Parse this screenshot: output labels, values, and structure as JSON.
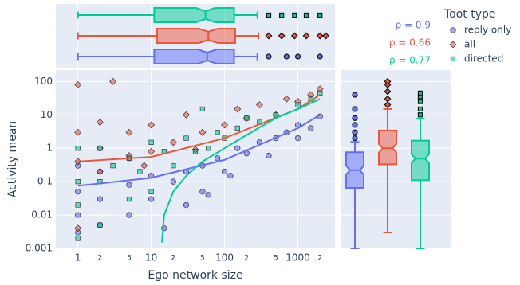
{
  "chart_data": [
    {
      "type": "scatter",
      "x_label": "Ego network size",
      "y_label": "Activity mean",
      "x_log": true,
      "y_log": true,
      "grid": true,
      "legend_title": "Toot type",
      "legend_position": "top-right",
      "xlim": [
        0.5,
        3200
      ],
      "ylim": [
        0.001,
        220
      ],
      "xticks": [
        1,
        2,
        5,
        10,
        {
          "value": 20,
          "label": "2"
        },
        {
          "value": 50,
          "label": "5"
        },
        100,
        {
          "value": 200,
          "label": "2"
        },
        {
          "value": 500,
          "label": "5"
        },
        1000,
        {
          "value": 2000,
          "label": "2"
        }
      ],
      "yticks": [
        0.001,
        0.01,
        0.1,
        1,
        10,
        100
      ],
      "annotations": [
        {
          "text": "ρ = 0.9",
          "color": "#636efa"
        },
        {
          "text": "ρ = 0.66",
          "color": "#ef553b"
        },
        {
          "text": "ρ = 0.77",
          "color": "#00cc96"
        }
      ],
      "series": [
        {
          "name": "reply only",
          "color": "#636efa",
          "symbol": "circle",
          "x": [
            1,
            1,
            1,
            1,
            2,
            2,
            2,
            5,
            5,
            5,
            10,
            10,
            15,
            20,
            30,
            50,
            50,
            80,
            100,
            150,
            200,
            300,
            400,
            500,
            700,
            1000,
            1000,
            1500,
            2000,
            30,
            60,
            120
          ],
          "values": [
            0.003,
            0.01,
            0.05,
            0.3,
            0.005,
            0.03,
            0.2,
            0.01,
            0.08,
            0.5,
            0.03,
            0.15,
            0.004,
            0.1,
            0.2,
            0.05,
            0.3,
            0.5,
            0.2,
            1,
            0.7,
            1.5,
            0.6,
            2,
            3,
            2,
            5,
            4,
            9,
            0.02,
            0.04,
            0.15
          ],
          "trend_x": [
            1,
            10,
            100,
            1000,
            2000
          ],
          "trend_y": [
            0.075,
            0.13,
            0.45,
            4,
            10
          ]
        },
        {
          "name": "all",
          "color": "#ef553b",
          "symbol": "diamond",
          "x": [
            1,
            1,
            1,
            1,
            2,
            2,
            2,
            3,
            5,
            5,
            10,
            10,
            20,
            30,
            50,
            100,
            150,
            200,
            300,
            500,
            700,
            1000,
            1500,
            2000,
            8,
            40
          ],
          "values": [
            0.004,
            0.4,
            3,
            80,
            0.2,
            1,
            6,
            100,
            0.6,
            3,
            0.8,
            5,
            1.5,
            10,
            3,
            5,
            15,
            8,
            20,
            10,
            30,
            25,
            40,
            60,
            0.3,
            0.9
          ],
          "trend_x": [
            1,
            10,
            100,
            1000,
            2000
          ],
          "trend_y": [
            0.4,
            0.55,
            2,
            15,
            40
          ]
        },
        {
          "name": "directed",
          "color": "#00cc96",
          "symbol": "square",
          "x": [
            1,
            1,
            1,
            1,
            2,
            2,
            2,
            5,
            5,
            10,
            10,
            15,
            20,
            30,
            50,
            80,
            100,
            200,
            300,
            500,
            1000,
            1500,
            2000,
            3,
            7,
            40,
            60,
            150
          ],
          "values": [
            0.002,
            0.02,
            0.1,
            1,
            0.005,
            0.1,
            1,
            0.03,
            0.5,
            0.05,
            1.5,
            0.8,
            0.3,
            2,
            15,
            3,
            2,
            8,
            6,
            10,
            20,
            30,
            45,
            0.3,
            0.2,
            0.8,
            1,
            4
          ],
          "trend_x": [
            14,
            15,
            20,
            30,
            50,
            100,
            200,
            500,
            1000,
            2000
          ],
          "trend_y": [
            0.0015,
            0.01,
            0.05,
            0.15,
            0.4,
            1,
            2.5,
            8,
            15,
            30
          ]
        }
      ]
    },
    {
      "type": "box",
      "orientation": "horizontal",
      "x_log": true,
      "xlim": [
        0.5,
        3200
      ],
      "series": [
        {
          "color": "#636efa",
          "min": 1,
          "q1": 11,
          "median": 58,
          "q3": 135,
          "max": 280,
          "outliers": [
            400,
            700,
            1000,
            2000
          ]
        },
        {
          "color": "#ef553b",
          "min": 1,
          "q1": 12,
          "median": 60,
          "q3": 140,
          "max": 290,
          "outliers": [
            400,
            600,
            900,
            1300,
            2000,
            2400
          ]
        },
        {
          "color": "#00cc96",
          "min": 1,
          "q1": 11,
          "median": 55,
          "q3": 135,
          "max": 280,
          "outliers": [
            400,
            600,
            900,
            1300,
            2000
          ]
        }
      ]
    },
    {
      "type": "box",
      "orientation": "vertical",
      "y_log": true,
      "ylim": [
        0.001,
        220
      ],
      "series": [
        {
          "color": "#636efa",
          "min": 0.001,
          "q1": 0.065,
          "median": 0.22,
          "q3": 0.76,
          "max": 1.55,
          "outliers": [
            2,
            3,
            5,
            8,
            15,
            40
          ]
        },
        {
          "color": "#ef553b",
          "min": 0.003,
          "q1": 0.33,
          "median": 1,
          "q3": 3.4,
          "max": 15,
          "outliers": [
            20,
            30,
            50,
            80,
            100
          ]
        },
        {
          "color": "#00cc96",
          "min": 0.001,
          "q1": 0.11,
          "median": 0.49,
          "q3": 1.7,
          "max": 7.7,
          "outliers": [
            10,
            15,
            25,
            35,
            45
          ]
        }
      ]
    }
  ]
}
